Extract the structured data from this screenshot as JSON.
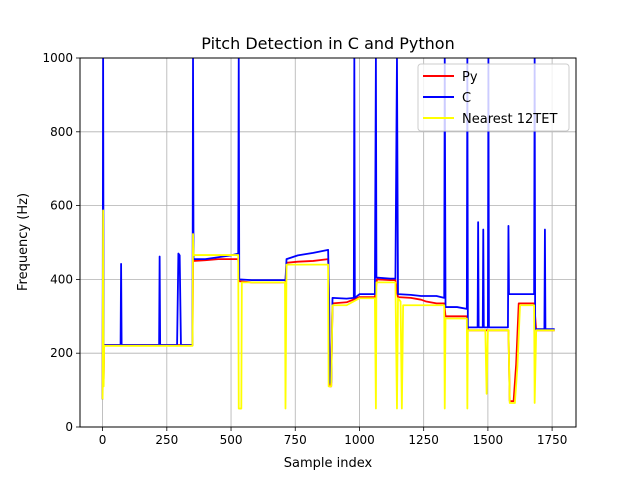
{
  "chart_data": {
    "type": "line",
    "title": "Pitch Detection in C and Python",
    "xlabel": "Sample index",
    "ylabel": "Frequency (Hz)",
    "xlim": [
      -88,
      1843
    ],
    "ylim": [
      0,
      1000
    ],
    "xticks": [
      0,
      250,
      500,
      750,
      1000,
      1250,
      1500,
      1750
    ],
    "yticks": [
      0,
      200,
      400,
      600,
      800,
      1000
    ],
    "grid": true,
    "legend_position": "top-right",
    "series": [
      {
        "name": "Py",
        "color": "#ff0000",
        "points": [
          [
            0,
            75
          ],
          [
            2,
            578
          ],
          [
            4,
            130
          ],
          [
            6,
            222
          ],
          [
            70,
            222
          ],
          [
            72,
            222
          ],
          [
            220,
            222
          ],
          [
            300,
            222
          ],
          [
            350,
            222
          ],
          [
            352,
            450
          ],
          [
            400,
            452
          ],
          [
            450,
            455
          ],
          [
            528,
            455
          ],
          [
            532,
            395
          ],
          [
            580,
            392
          ],
          [
            640,
            392
          ],
          [
            700,
            392
          ],
          [
            712,
            392
          ],
          [
            716,
            445
          ],
          [
            760,
            448
          ],
          [
            820,
            450
          ],
          [
            878,
            455
          ],
          [
            882,
            335
          ],
          [
            884,
            110
          ],
          [
            890,
            110
          ],
          [
            895,
            335
          ],
          [
            950,
            338
          ],
          [
            1000,
            352
          ],
          [
            1060,
            352
          ],
          [
            1068,
            400
          ],
          [
            1120,
            398
          ],
          [
            1140,
            398
          ],
          [
            1150,
            352
          ],
          [
            1200,
            350
          ],
          [
            1240,
            345
          ],
          [
            1260,
            340
          ],
          [
            1300,
            335
          ],
          [
            1330,
            335
          ],
          [
            1335,
            300
          ],
          [
            1380,
            300
          ],
          [
            1418,
            300
          ],
          [
            1422,
            262
          ],
          [
            1470,
            262
          ],
          [
            1490,
            262
          ],
          [
            1500,
            262
          ],
          [
            1560,
            262
          ],
          [
            1580,
            262
          ],
          [
            1585,
            70
          ],
          [
            1600,
            70
          ],
          [
            1610,
            170
          ],
          [
            1620,
            335
          ],
          [
            1660,
            335
          ],
          [
            1680,
            335
          ],
          [
            1688,
            262
          ],
          [
            1720,
            262
          ],
          [
            1760,
            262
          ]
        ]
      },
      {
        "name": "C",
        "color": "#0000ff",
        "points": [
          [
            0,
            75
          ],
          [
            2,
            1000
          ],
          [
            4,
            200
          ],
          [
            6,
            222
          ],
          [
            70,
            222
          ],
          [
            72,
            442
          ],
          [
            74,
            222
          ],
          [
            220,
            222
          ],
          [
            222,
            462
          ],
          [
            224,
            222
          ],
          [
            290,
            222
          ],
          [
            295,
            470
          ],
          [
            300,
            465
          ],
          [
            305,
            222
          ],
          [
            350,
            222
          ],
          [
            352,
            1000
          ],
          [
            354,
            455
          ],
          [
            400,
            455
          ],
          [
            450,
            460
          ],
          [
            500,
            465
          ],
          [
            528,
            470
          ],
          [
            530,
            1000
          ],
          [
            532,
            400
          ],
          [
            580,
            398
          ],
          [
            640,
            398
          ],
          [
            700,
            398
          ],
          [
            712,
            398
          ],
          [
            716,
            455
          ],
          [
            760,
            465
          ],
          [
            820,
            472
          ],
          [
            878,
            480
          ],
          [
            882,
            340
          ],
          [
            884,
            120
          ],
          [
            890,
            120
          ],
          [
            895,
            350
          ],
          [
            950,
            348
          ],
          [
            978,
            350
          ],
          [
            980,
            1000
          ],
          [
            982,
            350
          ],
          [
            1000,
            360
          ],
          [
            1060,
            360
          ],
          [
            1064,
            1000
          ],
          [
            1066,
            405
          ],
          [
            1120,
            402
          ],
          [
            1140,
            402
          ],
          [
            1146,
            1000
          ],
          [
            1150,
            360
          ],
          [
            1200,
            358
          ],
          [
            1240,
            355
          ],
          [
            1260,
            355
          ],
          [
            1300,
            355
          ],
          [
            1330,
            350
          ],
          [
            1332,
            1000
          ],
          [
            1335,
            325
          ],
          [
            1380,
            325
          ],
          [
            1418,
            320
          ],
          [
            1420,
            1000
          ],
          [
            1422,
            270
          ],
          [
            1460,
            270
          ],
          [
            1462,
            555
          ],
          [
            1464,
            270
          ],
          [
            1480,
            270
          ],
          [
            1482,
            535
          ],
          [
            1484,
            270
          ],
          [
            1500,
            270
          ],
          [
            1502,
            1000
          ],
          [
            1504,
            270
          ],
          [
            1560,
            270
          ],
          [
            1578,
            270
          ],
          [
            1580,
            545
          ],
          [
            1582,
            360
          ],
          [
            1620,
            360
          ],
          [
            1660,
            360
          ],
          [
            1680,
            360
          ],
          [
            1682,
            1000
          ],
          [
            1684,
            265
          ],
          [
            1720,
            265
          ],
          [
            1722,
            535
          ],
          [
            1724,
            265
          ],
          [
            1760,
            265
          ]
        ]
      },
      {
        "name": "Nearest 12TET",
        "color": "#ffff00",
        "points": [
          [
            0,
            75
          ],
          [
            2,
            587
          ],
          [
            4,
            110
          ],
          [
            6,
            220
          ],
          [
            100,
            220
          ],
          [
            220,
            220
          ],
          [
            300,
            220
          ],
          [
            350,
            220
          ],
          [
            352,
            523
          ],
          [
            354,
            466
          ],
          [
            400,
            466
          ],
          [
            450,
            466
          ],
          [
            528,
            466
          ],
          [
            530,
            50
          ],
          [
            540,
            50
          ],
          [
            542,
            392
          ],
          [
            580,
            392
          ],
          [
            640,
            392
          ],
          [
            700,
            392
          ],
          [
            710,
            392
          ],
          [
            712,
            50
          ],
          [
            716,
            440
          ],
          [
            760,
            440
          ],
          [
            820,
            440
          ],
          [
            878,
            440
          ],
          [
            880,
            110
          ],
          [
            890,
            110
          ],
          [
            895,
            330
          ],
          [
            950,
            330
          ],
          [
            1000,
            349
          ],
          [
            1060,
            349
          ],
          [
            1064,
            50
          ],
          [
            1066,
            392
          ],
          [
            1120,
            392
          ],
          [
            1140,
            392
          ],
          [
            1146,
            50
          ],
          [
            1150,
            349
          ],
          [
            1160,
            340
          ],
          [
            1165,
            50
          ],
          [
            1170,
            330
          ],
          [
            1200,
            330
          ],
          [
            1240,
            330
          ],
          [
            1300,
            330
          ],
          [
            1330,
            330
          ],
          [
            1332,
            50
          ],
          [
            1335,
            294
          ],
          [
            1380,
            294
          ],
          [
            1418,
            294
          ],
          [
            1420,
            50
          ],
          [
            1422,
            262
          ],
          [
            1470,
            262
          ],
          [
            1490,
            262
          ],
          [
            1495,
            90
          ],
          [
            1500,
            262
          ],
          [
            1560,
            262
          ],
          [
            1580,
            262
          ],
          [
            1585,
            65
          ],
          [
            1605,
            65
          ],
          [
            1615,
            165
          ],
          [
            1625,
            330
          ],
          [
            1660,
            330
          ],
          [
            1680,
            330
          ],
          [
            1682,
            65
          ],
          [
            1688,
            262
          ],
          [
            1720,
            262
          ],
          [
            1760,
            262
          ]
        ]
      }
    ]
  }
}
